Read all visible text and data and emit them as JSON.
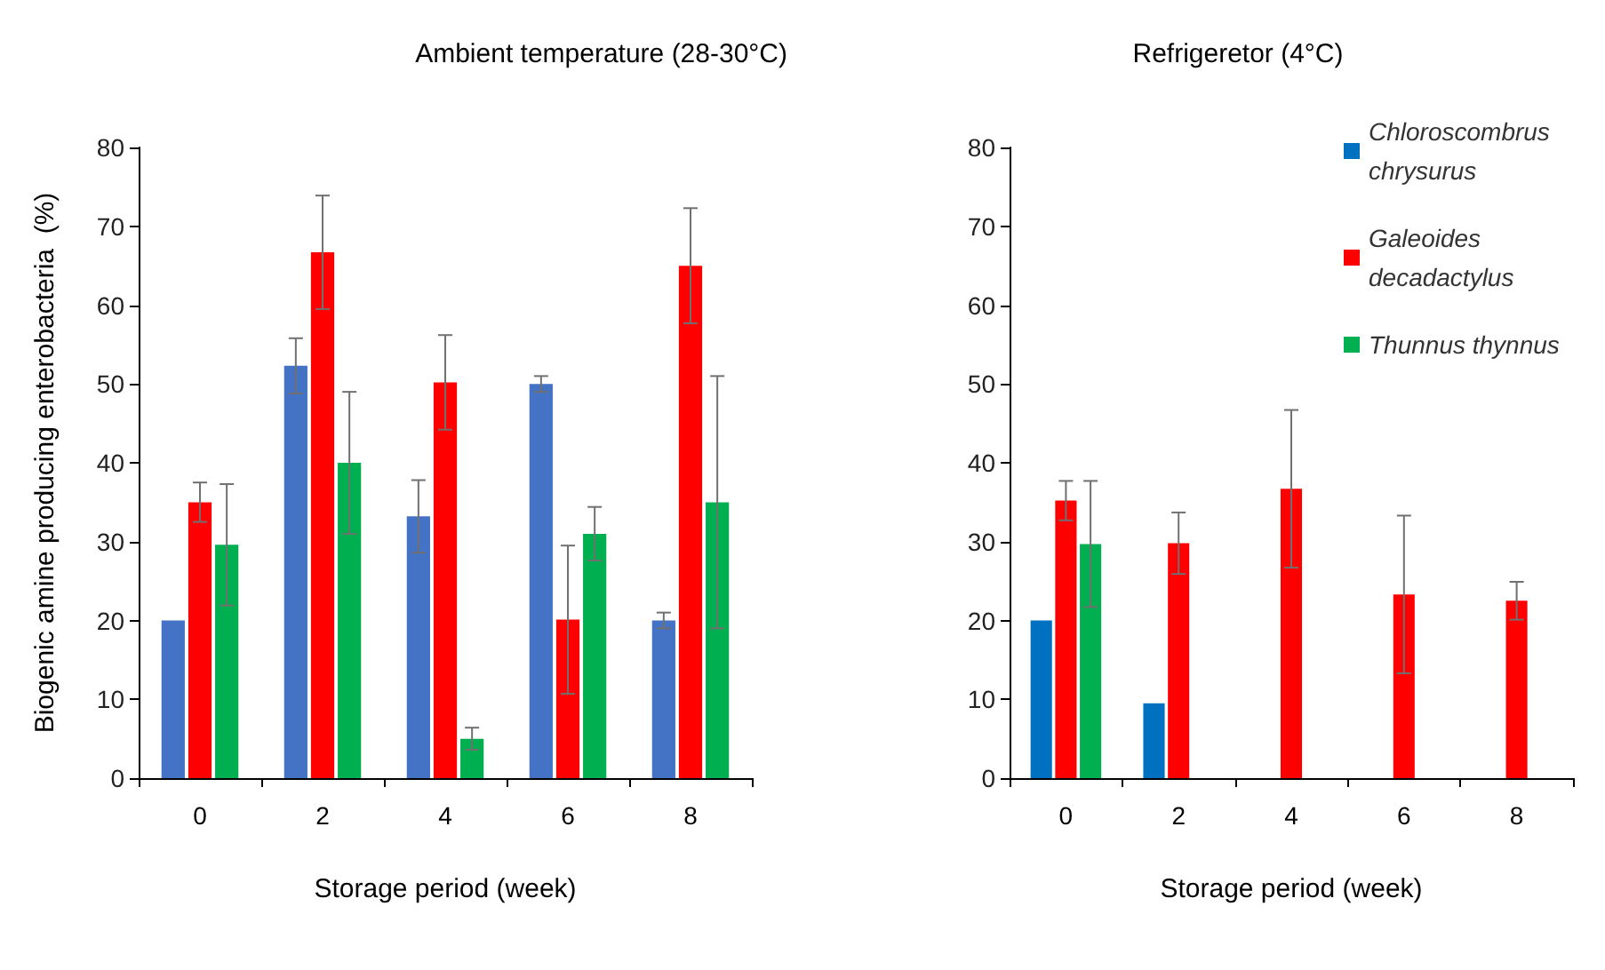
{
  "chart_data": [
    {
      "type": "bar",
      "title": "Ambient temperature (28-30°C)",
      "xlabel": "Storage period (week)",
      "ylabel": "Biogenic amine producing enterobacteria  (%)",
      "categories": [
        "0",
        "2",
        "4",
        "6",
        "8"
      ],
      "ylim": [
        0,
        80
      ],
      "yticks": [
        0,
        10,
        20,
        30,
        40,
        50,
        60,
        70,
        80
      ],
      "grid": false,
      "legend": false,
      "series": [
        {
          "color": "#4472c4",
          "values": [
            20,
            52.3,
            33.2,
            50,
            20
          ],
          "errors": [
            null,
            3.5,
            4.6,
            1,
            1
          ]
        },
        {
          "color": "#ff0000",
          "values": [
            35,
            66.7,
            50.2,
            20.1,
            65
          ],
          "errors": [
            2.5,
            7.2,
            6,
            9.4,
            7.3
          ]
        },
        {
          "color": "#00b050",
          "values": [
            29.6,
            40,
            5,
            31,
            35
          ],
          "errors": [
            7.7,
            9,
            1.4,
            3.4,
            16
          ]
        }
      ]
    },
    {
      "type": "bar",
      "title": "Refrigeretor (4°C)",
      "xlabel": "Storage period (week)",
      "categories": [
        "0",
        "2",
        "4",
        "6",
        "8"
      ],
      "ylim": [
        0,
        80
      ],
      "yticks": [
        0,
        10,
        20,
        30,
        40,
        50,
        60,
        70,
        80
      ],
      "grid": false,
      "legend": "top right",
      "series": [
        {
          "name": "Chloroscombrus chrysurus",
          "color": "#0070c0",
          "values": [
            20,
            9.5,
            null,
            null,
            null
          ],
          "errors": [
            null,
            null,
            null,
            null,
            null
          ]
        },
        {
          "name": "Galeoides decadactylus",
          "color": "#ff0000",
          "values": [
            35.2,
            29.8,
            36.7,
            23.3,
            22.5
          ],
          "errors": [
            2.5,
            3.9,
            10,
            10,
            2.4
          ]
        },
        {
          "name": "Thunnus thynnus",
          "color": "#00b050",
          "values": [
            29.7,
            null,
            null,
            null,
            null
          ],
          "errors": [
            8,
            null,
            null,
            null,
            null
          ]
        }
      ]
    }
  ]
}
